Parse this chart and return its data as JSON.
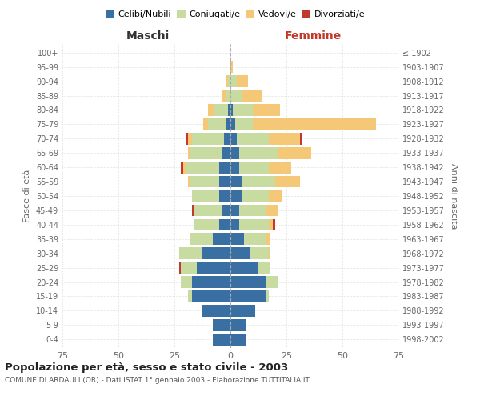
{
  "age_groups": [
    "0-4",
    "5-9",
    "10-14",
    "15-19",
    "20-24",
    "25-29",
    "30-34",
    "35-39",
    "40-44",
    "45-49",
    "50-54",
    "55-59",
    "60-64",
    "65-69",
    "70-74",
    "75-79",
    "80-84",
    "85-89",
    "90-94",
    "95-99",
    "100+"
  ],
  "birth_years": [
    "1998-2002",
    "1993-1997",
    "1988-1992",
    "1983-1987",
    "1978-1982",
    "1973-1977",
    "1968-1972",
    "1963-1967",
    "1958-1962",
    "1953-1957",
    "1948-1952",
    "1943-1947",
    "1938-1942",
    "1933-1937",
    "1928-1932",
    "1923-1927",
    "1918-1922",
    "1913-1917",
    "1908-1912",
    "1903-1907",
    "≤ 1902"
  ],
  "maschi": {
    "celibe": [
      8,
      8,
      13,
      17,
      17,
      15,
      13,
      8,
      5,
      4,
      5,
      5,
      5,
      4,
      3,
      2,
      1,
      0,
      0,
      0,
      0
    ],
    "coniugato": [
      0,
      0,
      0,
      2,
      5,
      7,
      10,
      10,
      11,
      12,
      12,
      13,
      15,
      14,
      14,
      8,
      6,
      2,
      1,
      0,
      0
    ],
    "vedovo": [
      0,
      0,
      0,
      0,
      0,
      0,
      0,
      0,
      0,
      0,
      0,
      1,
      1,
      1,
      2,
      2,
      3,
      2,
      1,
      0,
      0
    ],
    "divorziato": [
      0,
      0,
      0,
      0,
      0,
      1,
      0,
      0,
      0,
      1,
      0,
      0,
      1,
      0,
      1,
      0,
      0,
      0,
      0,
      0,
      0
    ]
  },
  "femmine": {
    "nubile": [
      7,
      7,
      11,
      16,
      16,
      12,
      9,
      6,
      4,
      4,
      5,
      5,
      4,
      4,
      3,
      2,
      1,
      0,
      0,
      0,
      0
    ],
    "coniugata": [
      0,
      0,
      0,
      1,
      5,
      6,
      8,
      10,
      13,
      12,
      12,
      15,
      13,
      17,
      14,
      8,
      9,
      5,
      3,
      0,
      0
    ],
    "vedova": [
      0,
      0,
      0,
      0,
      0,
      0,
      1,
      2,
      2,
      5,
      6,
      11,
      10,
      15,
      14,
      55,
      12,
      9,
      5,
      1,
      0
    ],
    "divorziata": [
      0,
      0,
      0,
      0,
      0,
      0,
      0,
      0,
      1,
      0,
      0,
      0,
      0,
      0,
      1,
      0,
      0,
      0,
      0,
      0,
      0
    ]
  },
  "colors": {
    "celibe": "#3a6fa3",
    "coniugato": "#c8dba0",
    "vedovo": "#f5c878",
    "divorziato": "#c0392b"
  },
  "legend_labels": [
    "Celibi/Nubili",
    "Coniugati/e",
    "Vedovi/e",
    "Divorziati/e"
  ],
  "title": "Popolazione per età, sesso e stato civile - 2003",
  "subtitle": "COMUNE DI ARDAULI (OR) - Dati ISTAT 1° gennaio 2003 - Elaborazione TUTTITALIA.IT",
  "label_maschi": "Maschi",
  "label_femmine": "Femmine",
  "ylabel_left": "Fasce di età",
  "ylabel_right": "Anni di nascita",
  "xlim": 75,
  "background_color": "#ffffff",
  "grid_color": "#cccccc",
  "bar_height": 0.82
}
